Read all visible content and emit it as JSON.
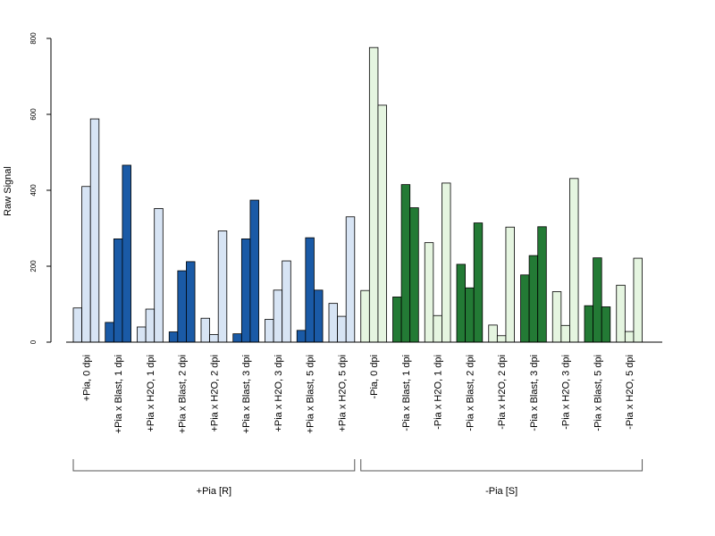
{
  "chart_data": {
    "type": "bar",
    "ylabel": "Raw Signal",
    "ylim": [
      0,
      800
    ],
    "yticks": [
      0,
      200,
      400,
      600,
      800
    ],
    "grid": false,
    "categories": [
      "+Pia, 0 dpi",
      "+Pia x Blast, 1 dpi",
      "+Pia x H2O, 1 dpi",
      "+Pia x Blast, 2 dpi",
      "+Pia x H2O, 2 dpi",
      "+Pia x Blast, 3 dpi",
      "+Pia x H2O, 3 dpi",
      "+Pia x Blast, 5 dpi",
      "+Pia x H2O, 5 dpi",
      "-Pia, 0 dpi",
      "-Pia x Blast, 1 dpi",
      "-Pia x H2O, 1 dpi",
      "-Pia x Blast, 2 dpi",
      "-Pia x H2O, 2 dpi",
      "-Pia x Blast, 3 dpi",
      "-Pia x H2O, 3 dpi",
      "-Pia x Blast, 5 dpi",
      "-Pia x H2O, 5 dpi"
    ],
    "values": [
      [
        90,
        410,
        588
      ],
      [
        52,
        272,
        466
      ],
      [
        40,
        87,
        352
      ],
      [
        27,
        188,
        212
      ],
      [
        63,
        20,
        293
      ],
      [
        22,
        272,
        374
      ],
      [
        60,
        137,
        214
      ],
      [
        31,
        275,
        137
      ],
      [
        102,
        68,
        330
      ],
      [
        136,
        776,
        624
      ],
      [
        119,
        415,
        354
      ],
      [
        262,
        70,
        419
      ],
      [
        205,
        143,
        314
      ],
      [
        45,
        17,
        303
      ],
      [
        177,
        228,
        304
      ],
      [
        133,
        44,
        431
      ],
      [
        96,
        222,
        93
      ],
      [
        150,
        28,
        221
      ]
    ],
    "bar_colors": [
      "#d7e4f4",
      "#1a5aa6",
      "#d7e4f4",
      "#1a5aa6",
      "#d7e4f4",
      "#1a5aa6",
      "#d7e4f4",
      "#1a5aa6",
      "#d7e4f4",
      "#e5f5e0",
      "#237a35",
      "#e5f5e0",
      "#237a35",
      "#e5f5e0",
      "#237a35",
      "#e5f5e0",
      "#237a35",
      "#e5f5e0"
    ],
    "groups": [
      {
        "label": "+Pia [R]",
        "from": 0,
        "to": 8
      },
      {
        "label": "-Pia [S]",
        "from": 9,
        "to": 17
      }
    ]
  }
}
